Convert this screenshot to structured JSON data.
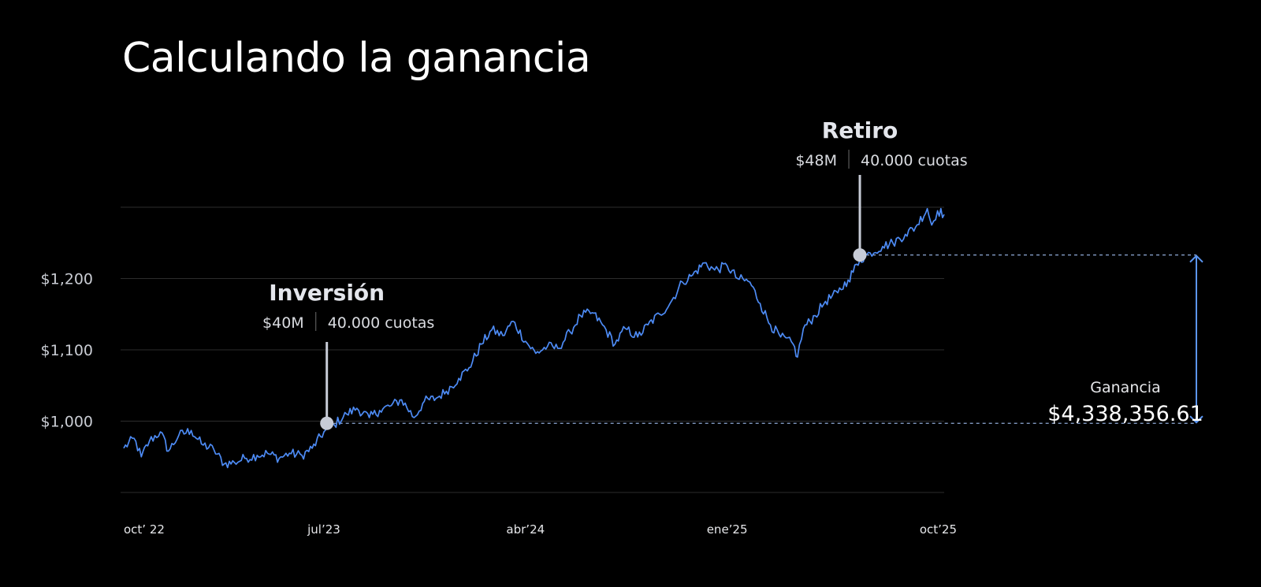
{
  "title": "Calculando la ganancia",
  "colors": {
    "background": "#000000",
    "line": "#4d8bf5",
    "grid": "#2c2c2c",
    "marker": "#c7cbd6",
    "arrow": "#5b95f0"
  },
  "chart_data": {
    "type": "line",
    "title": "Calculando la ganancia",
    "xlabel": "",
    "ylabel": "",
    "x_range": [
      "2022-10-01",
      "2025-10-24"
    ],
    "ylim": [
      900,
      1300
    ],
    "grid": true,
    "y_ticks": [
      {
        "value": 1000,
        "label": "$1,000"
      },
      {
        "value": 1100,
        "label": "$1,100"
      },
      {
        "value": 1200,
        "label": "$1,200"
      }
    ],
    "x_ticks": [
      {
        "date": "2022-10-01",
        "label": "oct’ 22"
      },
      {
        "date": "2023-07-01",
        "label": "jul’23"
      },
      {
        "date": "2024-04-01",
        "label": "abr’24"
      },
      {
        "date": "2025-01-01",
        "label": "ene’25"
      },
      {
        "date": "2025-10-01",
        "label": "oct’25"
      }
    ],
    "series": [
      {
        "name": "",
        "points": [
          [
            "2022-10-01",
            962
          ],
          [
            "2022-10-15",
            976
          ],
          [
            "2022-10-25",
            950
          ],
          [
            "2022-11-05",
            972
          ],
          [
            "2022-11-20",
            985
          ],
          [
            "2022-12-01",
            958
          ],
          [
            "2022-12-15",
            980
          ],
          [
            "2023-01-01",
            987
          ],
          [
            "2023-01-15",
            968
          ],
          [
            "2023-02-01",
            960
          ],
          [
            "2023-02-15",
            940
          ],
          [
            "2023-03-01",
            942
          ],
          [
            "2023-03-15",
            948
          ],
          [
            "2023-04-01",
            952
          ],
          [
            "2023-04-15",
            955
          ],
          [
            "2023-05-01",
            948
          ],
          [
            "2023-05-15",
            955
          ],
          [
            "2023-06-01",
            952
          ],
          [
            "2023-06-15",
            962
          ],
          [
            "2023-07-01",
            985
          ],
          [
            "2023-07-15",
            995
          ],
          [
            "2023-08-01",
            1010
          ],
          [
            "2023-08-15",
            1018
          ],
          [
            "2023-09-01",
            1005
          ],
          [
            "2023-09-15",
            1015
          ],
          [
            "2023-10-01",
            1022
          ],
          [
            "2023-10-15",
            1030
          ],
          [
            "2023-11-01",
            1005
          ],
          [
            "2023-11-15",
            1028
          ],
          [
            "2023-12-01",
            1032
          ],
          [
            "2023-12-15",
            1042
          ],
          [
            "2024-01-01",
            1060
          ],
          [
            "2024-01-15",
            1075
          ],
          [
            "2024-02-01",
            1108
          ],
          [
            "2024-02-15",
            1128
          ],
          [
            "2024-03-01",
            1120
          ],
          [
            "2024-03-15",
            1140
          ],
          [
            "2024-04-01",
            1112
          ],
          [
            "2024-04-15",
            1095
          ],
          [
            "2024-05-01",
            1105
          ],
          [
            "2024-05-15",
            1102
          ],
          [
            "2024-06-01",
            1125
          ],
          [
            "2024-06-15",
            1148
          ],
          [
            "2024-07-01",
            1152
          ],
          [
            "2024-07-15",
            1135
          ],
          [
            "2024-08-01",
            1108
          ],
          [
            "2024-08-15",
            1130
          ],
          [
            "2024-09-01",
            1118
          ],
          [
            "2024-09-15",
            1135
          ],
          [
            "2024-10-01",
            1150
          ],
          [
            "2024-10-15",
            1165
          ],
          [
            "2024-11-01",
            1195
          ],
          [
            "2024-11-15",
            1205
          ],
          [
            "2024-12-01",
            1222
          ],
          [
            "2024-12-15",
            1212
          ],
          [
            "2025-01-01",
            1218
          ],
          [
            "2025-01-15",
            1200
          ],
          [
            "2025-02-01",
            1195
          ],
          [
            "2025-02-15",
            1165
          ],
          [
            "2025-03-01",
            1135
          ],
          [
            "2025-03-15",
            1118
          ],
          [
            "2025-04-01",
            1108
          ],
          [
            "2025-04-07",
            1090
          ],
          [
            "2025-04-15",
            1130
          ],
          [
            "2025-05-01",
            1148
          ],
          [
            "2025-05-15",
            1168
          ],
          [
            "2025-06-01",
            1180
          ],
          [
            "2025-06-15",
            1198
          ],
          [
            "2025-07-01",
            1226
          ],
          [
            "2025-07-15",
            1236
          ],
          [
            "2025-08-01",
            1245
          ],
          [
            "2025-08-15",
            1250
          ],
          [
            "2025-09-01",
            1262
          ],
          [
            "2025-09-15",
            1272
          ],
          [
            "2025-10-01",
            1298
          ],
          [
            "2025-10-07",
            1275
          ],
          [
            "2025-10-15",
            1295
          ],
          [
            "2025-10-24",
            1290
          ]
        ]
      }
    ],
    "annotations": [
      {
        "type": "marker",
        "date": "2023-07-05",
        "value": 997,
        "title": "Inversión",
        "amount": "$40M",
        "shares": "40.000 cuotas"
      },
      {
        "type": "marker",
        "date": "2025-07-01",
        "value": 1233,
        "title": "Retiro",
        "amount": "$48M",
        "shares": "40.000 cuotas"
      },
      {
        "type": "gain",
        "label": "Ganancia",
        "value": "$4,338,356.61"
      }
    ]
  }
}
